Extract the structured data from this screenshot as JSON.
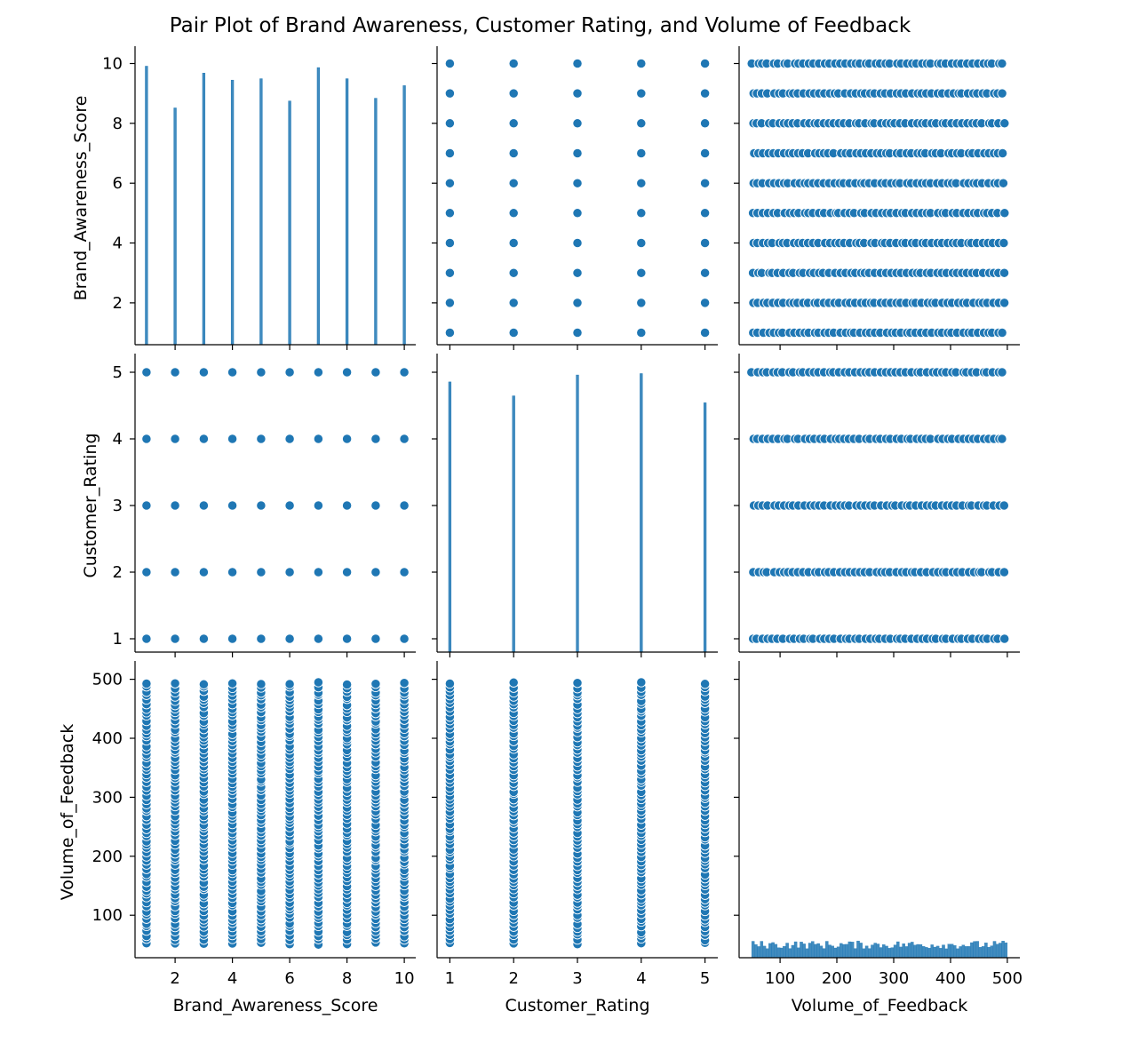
{
  "chart_data": {
    "type": "scatter",
    "subtype": "pairplot",
    "title": "Pair Plot of Brand Awareness, Customer Rating, and Volume of Feedback",
    "color": "#1f77b4",
    "variables": [
      {
        "key": "bas",
        "label": "Brand_Awareness_Score",
        "range": [
          0.6,
          10.4
        ],
        "ticks": [
          2,
          4,
          6,
          8,
          10
        ],
        "levels": [
          1,
          2,
          3,
          4,
          5,
          6,
          7,
          8,
          9,
          10
        ]
      },
      {
        "key": "cr",
        "label": "Customer_Rating",
        "range": [
          0.8,
          5.2
        ],
        "ticks": [
          1,
          2,
          3,
          4,
          5
        ],
        "levels": [
          1,
          2,
          3,
          4,
          5
        ]
      },
      {
        "key": "vof",
        "label": "Volume_of_Feedback",
        "range": [
          28,
          522
        ],
        "ticks": [
          100,
          200,
          300,
          400,
          500
        ],
        "levels_range": [
          50,
          500
        ]
      }
    ],
    "diagonal_histograms": {
      "bas": {
        "x": [
          1,
          2,
          3,
          4,
          5,
          6,
          7,
          8,
          9,
          10
        ],
        "relative_heights": [
          1.0,
          0.85,
          0.975,
          0.95,
          0.955,
          0.875,
          0.995,
          0.955,
          0.885,
          0.93
        ]
      },
      "cr": {
        "x": [
          1,
          2,
          3,
          4,
          5
        ],
        "relative_heights": [
          0.97,
          0.92,
          0.995,
          1.0,
          0.895
        ]
      },
      "vof": {
        "bins_range": [
          50,
          500
        ],
        "bin_count": 90
      }
    },
    "grid": false,
    "legend": "none"
  }
}
